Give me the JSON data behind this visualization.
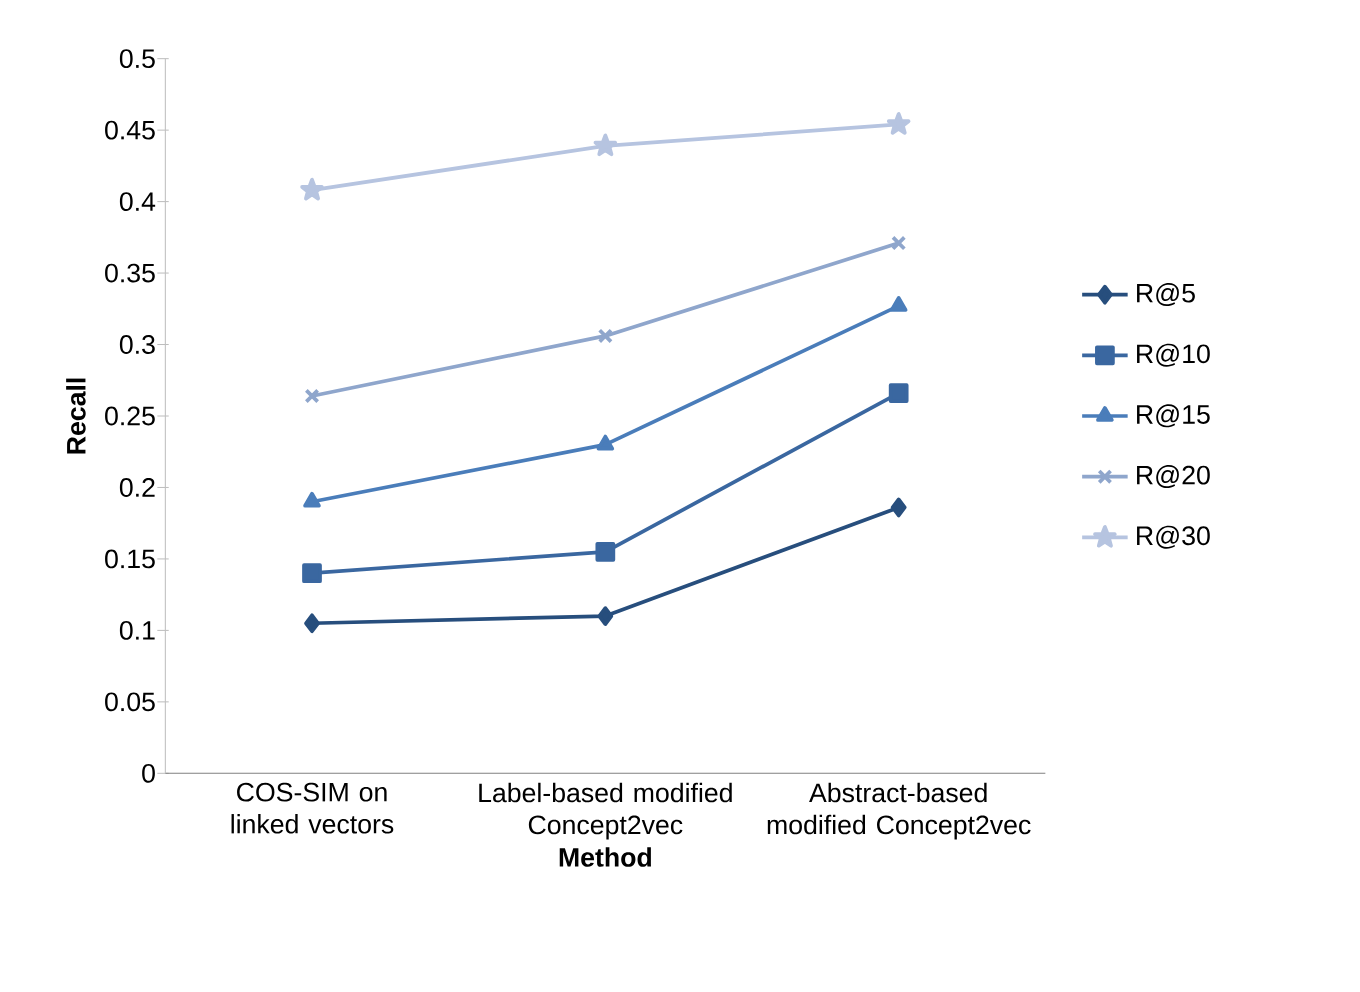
{
  "chart_data": {
    "type": "line",
    "xlabel": "Method",
    "ylabel": "Recall",
    "categories": [
      "COS-SIM on linked vectors",
      "Label-based modified Concept2vec",
      "Abstract-based modified Concept2vec"
    ],
    "series": [
      {
        "name": "R@5",
        "color": "#274e7d",
        "marker": "diamond",
        "values": [
          0.105,
          0.11,
          0.186
        ]
      },
      {
        "name": "R@10",
        "color": "#3a67a0",
        "marker": "square",
        "values": [
          0.14,
          0.155,
          0.266
        ]
      },
      {
        "name": "R@15",
        "color": "#4a7dba",
        "marker": "triangle",
        "values": [
          0.19,
          0.23,
          0.327
        ]
      },
      {
        "name": "R@20",
        "color": "#8fa6cc",
        "marker": "cross",
        "values": [
          0.264,
          0.306,
          0.371
        ]
      },
      {
        "name": "R@30",
        "color": "#b6c4e0",
        "marker": "star",
        "values": [
          0.408,
          0.439,
          0.454
        ]
      }
    ],
    "ylim": [
      0,
      0.5
    ],
    "yticks": [
      0,
      0.05,
      0.1,
      0.15,
      0.2,
      0.25,
      0.3,
      0.35,
      0.4,
      0.45,
      0.5
    ],
    "grid": false,
    "legend": "right",
    "line_style": "solid"
  }
}
